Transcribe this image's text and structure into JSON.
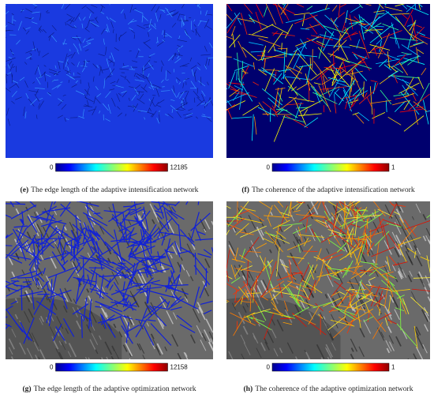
{
  "panels": [
    {
      "label": "(e)",
      "caption": "The edge length of the adaptive intensification network",
      "colorbar": {
        "min": 0,
        "max": 12185
      }
    },
    {
      "label": "(f)",
      "caption": "The coherence of the adaptive intensification network",
      "colorbar": {
        "min": 0,
        "max": 1
      }
    },
    {
      "label": "(g)",
      "caption": "The edge length of the adaptive optimization network",
      "colorbar": {
        "min": 0,
        "max": 12158
      }
    },
    {
      "label": "(h)",
      "caption": "The coherence of the adaptive optimization network",
      "colorbar": {
        "min": 0,
        "max": 1
      }
    }
  ]
}
